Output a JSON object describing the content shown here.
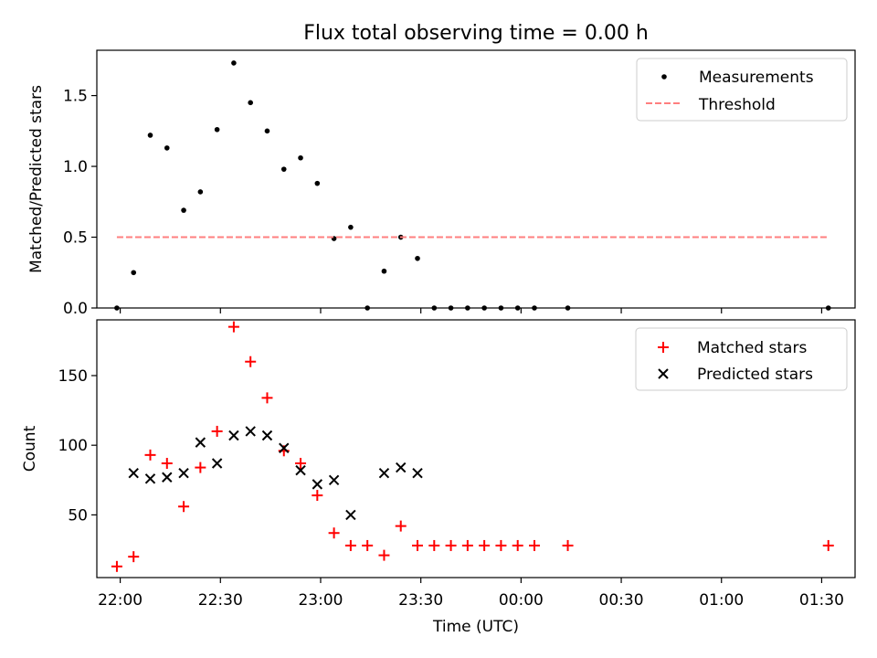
{
  "figure": {
    "title": "Flux total observing time = 0.00 h"
  },
  "chart_data": [
    {
      "type": "scatter",
      "panel": "top",
      "ylabel": "Matched/Predicted stars",
      "xlabel": "",
      "xlim": [
        "21:53",
        "01:40"
      ],
      "ylim": [
        0,
        1.82
      ],
      "yticks": [
        0.0,
        0.5,
        1.0,
        1.5
      ],
      "ytick_labels": [
        "0.0",
        "0.5",
        "1.0",
        "1.5"
      ],
      "legend_position": "top-right",
      "series": [
        {
          "name": "Measurements",
          "marker": "dot",
          "color": "#000000",
          "x": [
            "21:59",
            "22:04",
            "22:09",
            "22:14",
            "22:19",
            "22:24",
            "22:29",
            "22:34",
            "22:39",
            "22:44",
            "22:49",
            "22:54",
            "22:59",
            "23:04",
            "23:09",
            "23:14",
            "23:19",
            "23:24",
            "23:29",
            "23:34",
            "23:39",
            "23:44",
            "23:49",
            "23:54",
            "23:59",
            "00:04",
            "00:14",
            "01:32"
          ],
          "y": [
            0.0,
            0.25,
            1.22,
            1.13,
            0.69,
            0.82,
            1.26,
            1.73,
            1.45,
            1.25,
            0.98,
            1.06,
            0.88,
            0.49,
            0.57,
            0.0,
            0.26,
            0.5,
            0.35,
            0.0,
            0.0,
            0.0,
            0.0,
            0.0,
            0.0,
            0.0,
            0.0,
            0.0
          ]
        },
        {
          "name": "Threshold",
          "style": "dashed",
          "color": "#ff7f7f",
          "x": [
            "21:59",
            "01:32"
          ],
          "y": [
            0.5,
            0.5
          ]
        }
      ]
    },
    {
      "type": "scatter",
      "panel": "bottom",
      "ylabel": "Count",
      "xlabel": "Time (UTC)",
      "xlim": [
        "21:53",
        "01:40"
      ],
      "ylim": [
        5,
        190
      ],
      "yticks": [
        50,
        100,
        150
      ],
      "ytick_labels": [
        "50",
        "100",
        "150"
      ],
      "xticks": [
        "22:00",
        "22:30",
        "23:00",
        "23:30",
        "00:00",
        "00:30",
        "01:00",
        "01:30"
      ],
      "legend_position": "top-right",
      "series": [
        {
          "name": "Matched stars",
          "marker": "plus",
          "color": "#ff0000",
          "x": [
            "21:59",
            "22:04",
            "22:09",
            "22:14",
            "22:19",
            "22:24",
            "22:29",
            "22:34",
            "22:39",
            "22:44",
            "22:49",
            "22:54",
            "22:59",
            "23:04",
            "23:09",
            "23:14",
            "23:19",
            "23:24",
            "23:29",
            "23:34",
            "23:39",
            "23:44",
            "23:49",
            "23:54",
            "23:59",
            "00:04",
            "00:14",
            "01:32"
          ],
          "y": [
            13,
            20,
            93,
            87,
            56,
            84,
            110,
            185,
            160,
            134,
            96,
            87,
            64,
            37,
            28,
            28,
            21,
            42,
            28,
            28,
            28,
            28,
            28,
            28,
            28,
            28,
            28,
            28
          ]
        },
        {
          "name": "Predicted stars",
          "marker": "x",
          "color": "#000000",
          "x": [
            "22:04",
            "22:09",
            "22:14",
            "22:19",
            "22:24",
            "22:29",
            "22:34",
            "22:39",
            "22:44",
            "22:49",
            "22:54",
            "22:59",
            "23:04",
            "23:09",
            "23:19",
            "23:24",
            "23:29"
          ],
          "y": [
            80,
            76,
            77,
            80,
            102,
            87,
            107,
            110,
            107,
            98,
            82,
            72,
            75,
            50,
            80,
            84,
            80
          ]
        }
      ]
    }
  ]
}
